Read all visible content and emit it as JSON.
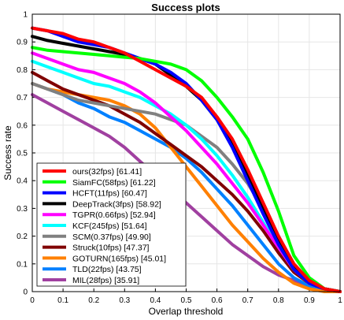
{
  "chart_data": {
    "type": "line",
    "title": "Success plots",
    "xlabel": "Overlap threshold",
    "ylabel": "Success rate",
    "xlim": [
      0,
      1
    ],
    "ylim": [
      0,
      1
    ],
    "xticks": [
      "0",
      "0.1",
      "0.2",
      "0.3",
      "0.4",
      "0.5",
      "0.6",
      "0.7",
      "0.8",
      "0.9",
      "1"
    ],
    "yticks": [
      "0",
      "0.1",
      "0.2",
      "0.3",
      "0.4",
      "0.5",
      "0.6",
      "0.7",
      "0.8",
      "0.9",
      "1"
    ],
    "grid": true,
    "legend_position": "bottom-left",
    "x": [
      0,
      0.05,
      0.1,
      0.15,
      0.2,
      0.25,
      0.3,
      0.35,
      0.4,
      0.45,
      0.5,
      0.55,
      0.6,
      0.65,
      0.7,
      0.75,
      0.8,
      0.85,
      0.9,
      0.95,
      1
    ],
    "series": [
      {
        "name": "ours(32fps) [61.41]",
        "color": "#ff0000",
        "values": [
          0.95,
          0.94,
          0.93,
          0.91,
          0.9,
          0.88,
          0.86,
          0.83,
          0.8,
          0.77,
          0.74,
          0.7,
          0.63,
          0.55,
          0.44,
          0.32,
          0.2,
          0.1,
          0.04,
          0.01,
          0
        ]
      },
      {
        "name": "SiamFC(58fps) [61.22]",
        "color": "#00ff00",
        "values": [
          0.88,
          0.87,
          0.865,
          0.86,
          0.855,
          0.85,
          0.845,
          0.84,
          0.83,
          0.82,
          0.8,
          0.76,
          0.7,
          0.63,
          0.55,
          0.43,
          0.29,
          0.13,
          0.05,
          0.01,
          0
        ]
      },
      {
        "name": "HCFT(11fps) [60.47]",
        "color": "#0000ff",
        "values": [
          0.95,
          0.94,
          0.92,
          0.9,
          0.89,
          0.88,
          0.86,
          0.84,
          0.82,
          0.79,
          0.75,
          0.69,
          0.62,
          0.52,
          0.4,
          0.28,
          0.17,
          0.08,
          0.03,
          0.01,
          0
        ]
      },
      {
        "name": "DeepTrack(3fps) [58.92]",
        "color": "#000000",
        "values": [
          0.92,
          0.905,
          0.895,
          0.885,
          0.875,
          0.865,
          0.855,
          0.84,
          0.82,
          0.78,
          0.74,
          0.69,
          0.62,
          0.53,
          0.42,
          0.3,
          0.19,
          0.09,
          0.03,
          0.01,
          0
        ]
      },
      {
        "name": "TGPR(0.66fps) [52.94]",
        "color": "#ff00ff",
        "values": [
          0.86,
          0.84,
          0.82,
          0.8,
          0.79,
          0.77,
          0.75,
          0.72,
          0.68,
          0.63,
          0.58,
          0.52,
          0.46,
          0.39,
          0.32,
          0.24,
          0.16,
          0.08,
          0.03,
          0.01,
          0
        ]
      },
      {
        "name": "KCF(245fps) [51.64]",
        "color": "#00ffff",
        "values": [
          0.83,
          0.81,
          0.79,
          0.77,
          0.75,
          0.74,
          0.72,
          0.7,
          0.67,
          0.64,
          0.6,
          0.55,
          0.49,
          0.42,
          0.34,
          0.25,
          0.16,
          0.08,
          0.03,
          0.01,
          0
        ]
      },
      {
        "name": "SCM(0.37fps) [49.90]",
        "color": "#808080",
        "values": [
          0.75,
          0.73,
          0.71,
          0.69,
          0.68,
          0.67,
          0.66,
          0.65,
          0.64,
          0.62,
          0.6,
          0.56,
          0.52,
          0.46,
          0.39,
          0.3,
          0.2,
          0.1,
          0.04,
          0.01,
          0
        ]
      },
      {
        "name": "Struck(10fps) [47.37]",
        "color": "#800000",
        "values": [
          0.79,
          0.76,
          0.73,
          0.71,
          0.69,
          0.67,
          0.64,
          0.61,
          0.57,
          0.53,
          0.49,
          0.45,
          0.4,
          0.35,
          0.29,
          0.22,
          0.14,
          0.07,
          0.03,
          0.01,
          0
        ]
      },
      {
        "name": "GOTURN(165fps) [45.01]",
        "color": "#ff8000",
        "values": [
          0.75,
          0.73,
          0.72,
          0.71,
          0.7,
          0.69,
          0.67,
          0.64,
          0.59,
          0.52,
          0.45,
          0.38,
          0.31,
          0.24,
          0.18,
          0.12,
          0.07,
          0.03,
          0.01,
          0,
          0
        ]
      },
      {
        "name": "TLD(22fps) [43.75]",
        "color": "#0080ff",
        "values": [
          0.75,
          0.73,
          0.71,
          0.68,
          0.66,
          0.63,
          0.61,
          0.58,
          0.55,
          0.52,
          0.48,
          0.43,
          0.37,
          0.31,
          0.24,
          0.17,
          0.1,
          0.05,
          0.02,
          0.01,
          0
        ]
      },
      {
        "name": "MIL(28fps) [35.91]",
        "color": "#a040a0",
        "values": [
          0.71,
          0.68,
          0.65,
          0.62,
          0.59,
          0.56,
          0.52,
          0.47,
          0.42,
          0.37,
          0.32,
          0.27,
          0.22,
          0.17,
          0.13,
          0.09,
          0.06,
          0.04,
          0.02,
          0.01,
          0
        ]
      }
    ]
  }
}
